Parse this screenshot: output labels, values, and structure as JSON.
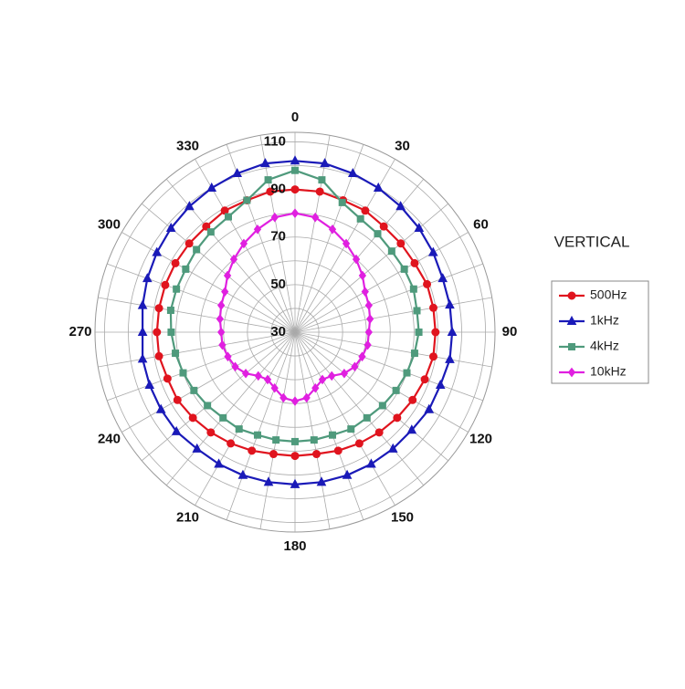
{
  "chart_data": {
    "type": "polar",
    "title": "VERTICAL",
    "theta": [
      0,
      10,
      20,
      30,
      40,
      50,
      60,
      70,
      80,
      90,
      100,
      110,
      120,
      130,
      140,
      150,
      160,
      170,
      180,
      190,
      200,
      210,
      220,
      230,
      240,
      250,
      260,
      270,
      280,
      290,
      300,
      310,
      320,
      330,
      340,
      350
    ],
    "thetaticks": [
      0,
      30,
      60,
      90,
      120,
      150,
      180,
      210,
      240,
      270,
      300,
      330
    ],
    "theta_grid_step": 10,
    "rlim": [
      30,
      114
    ],
    "rticks": [
      30,
      50,
      70,
      90,
      110
    ],
    "minor_rticks": [
      40,
      60,
      80,
      100
    ],
    "grid": true,
    "legend": "right",
    "series": [
      {
        "name": "500Hz",
        "color": "#e0141e",
        "marker": "circle",
        "values": [
          90,
          90,
          89,
          89,
          88,
          88,
          88,
          89,
          89,
          89,
          89,
          88,
          87,
          86,
          85,
          84,
          83,
          82,
          82,
          82,
          83,
          84,
          85,
          86,
          87,
          87,
          88,
          88,
          88,
          88,
          88,
          88,
          88,
          89,
          89,
          90
        ]
      },
      {
        "name": "1kHz",
        "color": "#1a1ab8",
        "marker": "triangle",
        "values": [
          102,
          102,
          101,
          100,
          99,
          98,
          97,
          96,
          96,
          96,
          96,
          95,
          95,
          94,
          94,
          94,
          94,
          94,
          94,
          94,
          94,
          94,
          94,
          95,
          95,
          95,
          95,
          94,
          95,
          96,
          97,
          98,
          99,
          100,
          101,
          102
        ]
      },
      {
        "name": "4kHz",
        "color": "#4f9a7c",
        "marker": "square",
        "values": [
          98,
          95,
          88,
          85,
          84,
          83,
          83,
          83,
          82,
          82,
          81,
          80,
          79,
          78,
          77,
          77,
          76,
          76,
          76,
          76,
          76,
          77,
          77,
          78,
          79,
          80,
          81,
          82,
          83,
          83,
          83,
          84,
          85,
          86,
          89,
          95
        ]
      },
      {
        "name": "10kHz",
        "color": "#e020e0",
        "marker": "diamond",
        "values": [
          80,
          79,
          76,
          73,
          70,
          67,
          64,
          63,
          62,
          61,
          61,
          60,
          59,
          57,
          54,
          53,
          55,
          58,
          59,
          58,
          55,
          53,
          54,
          57,
          59,
          60,
          61,
          61,
          62,
          63,
          64,
          67,
          70,
          73,
          76,
          79
        ]
      }
    ]
  }
}
